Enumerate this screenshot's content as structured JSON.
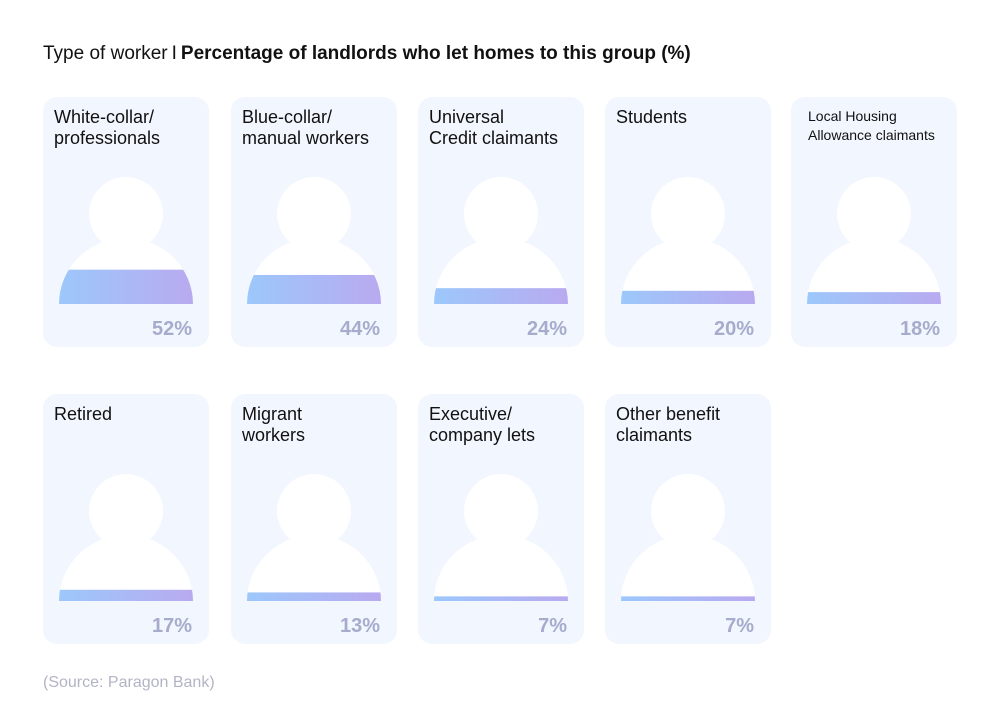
{
  "title": {
    "prefix": "Type of worker",
    "separator": "I",
    "main": "Percentage of landlords who let homes to this group (%)"
  },
  "chart_data": {
    "type": "pictogram",
    "unit": "%",
    "categories": [
      "White-collar/ professionals",
      "Blue-collar/ manual workers",
      "Universal Credit claimants",
      "Students",
      "Local Housing Allowance claimants",
      "Retired",
      "Migrant workers",
      "Executive/ company lets",
      "Other benefit claimants"
    ],
    "values": [
      52,
      44,
      24,
      20,
      18,
      17,
      13,
      7,
      7
    ],
    "value_labels": [
      "52%",
      "44%",
      "24%",
      "20%",
      "18%",
      "17%",
      "13%",
      "7%",
      "7%"
    ]
  },
  "colors": {
    "card_bg": "#f2f6fe",
    "fill_start": "#9cc8fb",
    "fill_end": "#b9aaf0",
    "value_text": "#a7abcc",
    "source_text": "#b3b3c6"
  },
  "source": "(Source: Paragon Bank)"
}
